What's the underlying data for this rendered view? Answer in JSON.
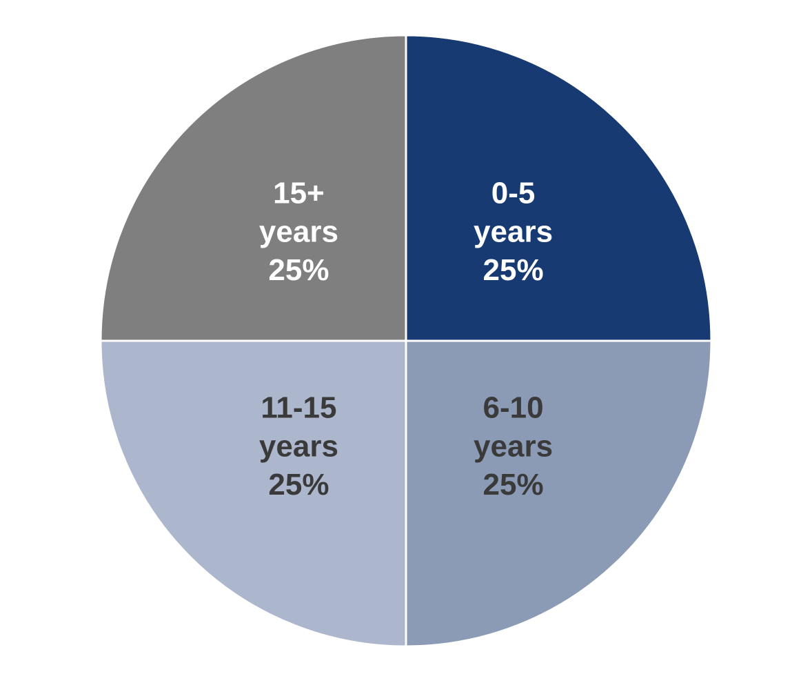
{
  "chart_data": {
    "type": "pie",
    "categories": [
      "0-5 years",
      "6-10 years",
      "11-15 years",
      "15+ years"
    ],
    "values": [
      25,
      25,
      25,
      25
    ],
    "value_labels": [
      "25%",
      "25%",
      "25%",
      "25%"
    ],
    "colors": [
      "#183a72",
      "#8b9ab5",
      "#acb6cc",
      "#7f7f7f"
    ],
    "label_colors": [
      "#ffffff",
      "#3a3a3a",
      "#3a3a3a",
      "#ffffff"
    ]
  }
}
